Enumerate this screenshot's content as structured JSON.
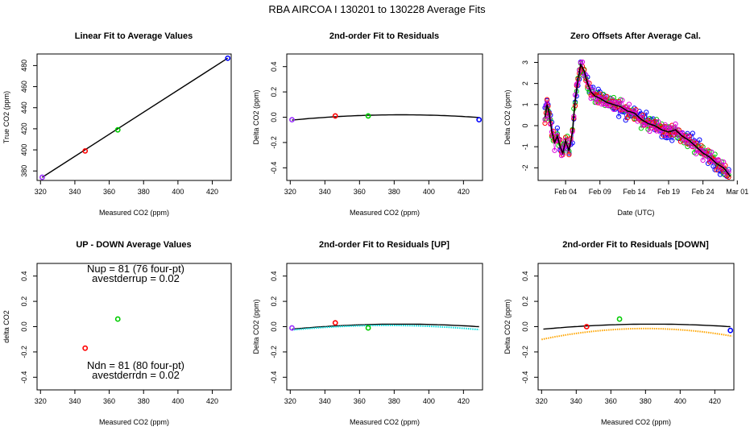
{
  "supertitle": "RBA   AIRCOA I   130201 to 130228   Average Fits",
  "colors": {
    "red": "#ff0000",
    "green": "#00cc00",
    "blue": "#0000ff",
    "purple": "#9b30ff",
    "magenta": "#dd00dd",
    "cyan": "#00dddd",
    "orange": "#ffa500",
    "black": "#000000"
  },
  "chart_data": [
    {
      "id": "linear",
      "type": "scatter",
      "title": "Linear Fit to Average Values",
      "xlabel": "Measured CO2 (ppm)",
      "ylabel": "True CO2 (ppm)",
      "xlim": [
        318,
        431
      ],
      "ylim": [
        371,
        491
      ],
      "xticks": [
        320,
        340,
        360,
        380,
        400,
        420
      ],
      "yticks": [
        380,
        400,
        420,
        440,
        460,
        480
      ],
      "points": [
        {
          "x": 321,
          "y": 374,
          "color": "purple"
        },
        {
          "x": 346,
          "y": 399,
          "color": "red"
        },
        {
          "x": 365,
          "y": 419,
          "color": "green"
        },
        {
          "x": 429,
          "y": 487,
          "color": "blue"
        }
      ],
      "lines": [
        {
          "x": [
            321,
            429
          ],
          "y": [
            374,
            487
          ],
          "color": "black"
        }
      ]
    },
    {
      "id": "resid",
      "type": "scatter",
      "title": "2nd-order Fit to Residuals",
      "xlabel": "Measured CO2 (ppm)",
      "ylabel": "Delta CO2 (ppm)",
      "xlim": [
        318,
        431
      ],
      "ylim": [
        -0.5,
        0.5
      ],
      "xticks": [
        320,
        340,
        360,
        380,
        400,
        420
      ],
      "yticks": [
        -0.4,
        -0.2,
        0.0,
        0.2,
        0.4
      ],
      "points": [
        {
          "x": 321,
          "y": -0.02,
          "color": "purple"
        },
        {
          "x": 346,
          "y": 0.01,
          "color": "red"
        },
        {
          "x": 365,
          "y": 0.01,
          "color": "green"
        },
        {
          "x": 429,
          "y": -0.02,
          "color": "blue"
        }
      ],
      "lines": [
        {
          "quad": [
            -0.021,
            1.05e-05
          ],
          "mid": 384,
          "x0": 321,
          "x1": 429,
          "color": "black"
        }
      ]
    },
    {
      "id": "offsets",
      "type": "scatter",
      "title": "Zero Offsets After Average Cal.",
      "xlabel": "Date (UTC)",
      "ylabel": "Delta CO2 (ppm)",
      "xlim": [
        0,
        28.5
      ],
      "ylim": [
        -2.6,
        3.4
      ],
      "xticks": [
        4,
        9,
        14,
        19,
        24,
        29
      ],
      "xticklabels": [
        "Feb 04",
        "Feb 09",
        "Feb 14",
        "Feb 19",
        "Feb 24",
        "Mar 01"
      ],
      "yticks": [
        -2,
        -1,
        0,
        1,
        2,
        3
      ],
      "curve": [
        [
          1,
          0.4
        ],
        [
          1.3,
          1.0
        ],
        [
          1.6,
          0.6
        ],
        [
          2,
          -0.3
        ],
        [
          2.4,
          -0.8
        ],
        [
          2.8,
          -0.5
        ],
        [
          3.2,
          -1.0
        ],
        [
          3.6,
          -1.3
        ],
        [
          4,
          -0.7
        ],
        [
          4.5,
          -1.2
        ],
        [
          5,
          -0.3
        ],
        [
          5.4,
          1.2
        ],
        [
          5.8,
          2.2
        ],
        [
          6.2,
          2.9
        ],
        [
          6.7,
          2.6
        ],
        [
          7.2,
          2.0
        ],
        [
          7.7,
          1.6
        ],
        [
          8.3,
          1.4
        ],
        [
          9,
          1.3
        ],
        [
          10,
          1.1
        ],
        [
          11,
          1.0
        ],
        [
          12,
          0.9
        ],
        [
          13,
          0.7
        ],
        [
          14,
          0.6
        ],
        [
          15,
          0.3
        ],
        [
          16,
          0.1
        ],
        [
          17,
          0.0
        ],
        [
          18,
          -0.2
        ],
        [
          19,
          -0.3
        ],
        [
          20,
          -0.2
        ],
        [
          21,
          -0.5
        ],
        [
          22,
          -0.7
        ],
        [
          23,
          -1.0
        ],
        [
          24,
          -1.3
        ],
        [
          25,
          -1.5
        ],
        [
          26,
          -1.8
        ],
        [
          27,
          -2.0
        ],
        [
          28,
          -2.4
        ]
      ],
      "series": [
        {
          "name": "blue",
          "color": "blue",
          "offset": 0.25
        },
        {
          "name": "green",
          "color": "green",
          "offset": -0.15
        },
        {
          "name": "red",
          "color": "red",
          "offset": -0.05
        },
        {
          "name": "magenta",
          "color": "magenta",
          "offset": 0.1
        }
      ]
    },
    {
      "id": "updown",
      "type": "scatter",
      "title": "UP - DOWN Average Values",
      "xlabel": "Measured CO2 (ppm)",
      "ylabel": "delta CO2",
      "xlim": [
        318,
        431
      ],
      "ylim": [
        -0.5,
        0.5
      ],
      "xticks": [
        320,
        340,
        360,
        380,
        400,
        420
      ],
      "yticks": [
        -0.4,
        -0.2,
        0.0,
        0.2,
        0.4
      ],
      "points": [
        {
          "x": 346,
          "y": -0.17,
          "color": "red"
        },
        {
          "x": 365,
          "y": 0.06,
          "color": "green"
        }
      ],
      "annotations": [
        {
          "line1": "Nup = 81 (76 four-pt)",
          "line2": "avestderrup =  0.02",
          "pos": "top"
        },
        {
          "line1": "Ndn = 81 (80 four-pt)",
          "line2": "avestderrdn =  0.02",
          "pos": "bottom"
        }
      ]
    },
    {
      "id": "resid_up",
      "type": "scatter",
      "title": "2nd-order Fit to Residuals [UP]",
      "xlabel": "Measured CO2 (ppm)",
      "ylabel": "Delta CO2 (ppm)",
      "xlim": [
        318,
        431
      ],
      "ylim": [
        -0.5,
        0.5
      ],
      "xticks": [
        320,
        340,
        360,
        380,
        400,
        420
      ],
      "yticks": [
        -0.4,
        -0.2,
        0.0,
        0.2,
        0.4
      ],
      "points": [
        {
          "x": 321,
          "y": -0.01,
          "color": "purple"
        },
        {
          "x": 346,
          "y": 0.03,
          "color": "red"
        },
        {
          "x": 365,
          "y": -0.01,
          "color": "green"
        }
      ],
      "lines": [
        {
          "quad": [
            -0.02,
            1e-05
          ],
          "mid": 384,
          "x0": 321,
          "x1": 429,
          "color": "black"
        },
        {
          "quad": [
            -0.03,
            1.2e-05
          ],
          "mid": 376,
          "x0": 321,
          "x1": 429,
          "color": "cyan",
          "dotted": true
        }
      ]
    },
    {
      "id": "resid_down",
      "type": "scatter",
      "title": "2nd-order Fit to Residuals [DOWN]",
      "xlabel": "Measured CO2 (ppm)",
      "ylabel": "Delta CO2 (ppm)",
      "xlim": [
        318,
        431
      ],
      "ylim": [
        -0.5,
        0.5
      ],
      "xticks": [
        320,
        340,
        360,
        380,
        400,
        420
      ],
      "yticks": [
        -0.4,
        -0.2,
        0.0,
        0.2,
        0.4
      ],
      "points": [
        {
          "x": 346,
          "y": 0.0,
          "color": "red"
        },
        {
          "x": 365,
          "y": 0.06,
          "color": "green"
        },
        {
          "x": 429,
          "y": -0.03,
          "color": "blue"
        }
      ],
      "lines": [
        {
          "quad": [
            -0.02,
            1e-05
          ],
          "mid": 384,
          "x0": 321,
          "x1": 429,
          "color": "black"
        },
        {
          "quad": [
            -0.055,
            2.4e-05
          ],
          "mid": 380,
          "x0": 320,
          "x1": 430,
          "color": "orange",
          "dotted": true
        }
      ]
    }
  ]
}
